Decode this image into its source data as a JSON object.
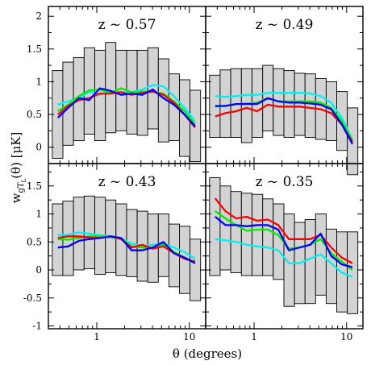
{
  "figure": {
    "xlabel": "θ (degrees)",
    "ylabel_main": "w",
    "ylabel_sub": "gT",
    "ylabel_subsub": "L",
    "ylabel_rest": "(θ) [μK]"
  },
  "chart_data": [
    {
      "type": "line",
      "title": "z ~ 0.57",
      "x_scale": "log",
      "xlim": [
        0.3,
        15
      ],
      "ylim": [
        -0.25,
        2.15
      ],
      "x_ticks": [
        1,
        10
      ],
      "x_tick_labels": [
        "1",
        "10"
      ],
      "y_ticks": [
        0,
        0.5,
        1,
        1.5,
        2
      ],
      "y_tick_labels": [
        "0",
        "0.5",
        "1",
        "1.5",
        "2"
      ],
      "boxes": [
        {
          "x0": 0.33,
          "x1": 0.43,
          "y0": -0.17,
          "y1": 1.17
        },
        {
          "x0": 0.43,
          "x1": 0.56,
          "y0": 0.03,
          "y1": 1.3
        },
        {
          "x0": 0.56,
          "x1": 0.73,
          "y0": 0.1,
          "y1": 1.37
        },
        {
          "x0": 0.73,
          "x1": 0.95,
          "y0": 0.2,
          "y1": 1.52
        },
        {
          "x0": 0.95,
          "x1": 1.24,
          "y0": 0.1,
          "y1": 1.48
        },
        {
          "x0": 1.24,
          "x1": 1.61,
          "y0": 0.22,
          "y1": 1.6
        },
        {
          "x0": 1.61,
          "x1": 2.1,
          "y0": 0.25,
          "y1": 1.48
        },
        {
          "x0": 2.1,
          "x1": 2.73,
          "y0": 0.2,
          "y1": 1.48
        },
        {
          "x0": 2.73,
          "x1": 3.55,
          "y0": 0.18,
          "y1": 1.48
        },
        {
          "x0": 3.55,
          "x1": 4.62,
          "y0": 0.28,
          "y1": 1.52
        },
        {
          "x0": 4.62,
          "x1": 6.01,
          "y0": 0.08,
          "y1": 1.35
        },
        {
          "x0": 6.01,
          "x1": 7.82,
          "y0": 0.1,
          "y1": 1.12
        },
        {
          "x0": 7.82,
          "x1": 10.17,
          "y0": -0.14,
          "y1": 1.03
        },
        {
          "x0": 10.17,
          "x1": 13.23,
          "y0": -0.22,
          "y1": 0.87
        }
      ],
      "x": [
        0.38,
        0.49,
        0.64,
        0.83,
        1.08,
        1.41,
        1.83,
        2.38,
        3.1,
        4.03,
        5.24,
        6.82,
        8.87,
        11.54
      ],
      "series": [
        {
          "color": "#00f0f0",
          "values": [
            0.65,
            0.7,
            0.75,
            0.85,
            0.8,
            0.85,
            0.84,
            0.84,
            0.88,
            0.95,
            0.93,
            0.78,
            0.6,
            0.4
          ]
        },
        {
          "color": "#00ee00",
          "values": [
            0.55,
            0.65,
            0.78,
            0.87,
            0.88,
            0.83,
            0.9,
            0.84,
            0.85,
            0.85,
            0.82,
            0.7,
            0.55,
            0.35
          ]
        },
        {
          "color": "#ff0000",
          "values": [
            0.5,
            0.63,
            0.72,
            0.75,
            0.82,
            0.82,
            0.84,
            0.8,
            0.83,
            0.85,
            0.8,
            0.68,
            0.5,
            0.3
          ]
        },
        {
          "color": "#0000ff",
          "values": [
            0.45,
            0.6,
            0.75,
            0.72,
            0.9,
            0.86,
            0.8,
            0.82,
            0.8,
            0.88,
            0.75,
            0.65,
            0.5,
            0.32
          ]
        }
      ]
    },
    {
      "type": "line",
      "title": "z ~ 0.49",
      "x_scale": "log",
      "xlim": [
        0.3,
        15
      ],
      "ylim": [
        -0.25,
        2.15
      ],
      "x_ticks": [
        1,
        10
      ],
      "x_tick_labels": [
        "1",
        "10"
      ],
      "y_ticks": [
        0,
        0.5,
        1,
        1.5,
        2
      ],
      "y_tick_labels": [
        "0",
        "0.5",
        "1",
        "1.5",
        "2"
      ],
      "boxes": [
        {
          "x0": 0.33,
          "x1": 0.43,
          "y0": 0.15,
          "y1": 1.1
        },
        {
          "x0": 0.43,
          "x1": 0.56,
          "y0": 0.15,
          "y1": 1.18
        },
        {
          "x0": 0.56,
          "x1": 0.73,
          "y0": 0.15,
          "y1": 1.2
        },
        {
          "x0": 0.73,
          "x1": 0.95,
          "y0": 0.07,
          "y1": 1.2
        },
        {
          "x0": 0.95,
          "x1": 1.24,
          "y0": 0.15,
          "y1": 1.2
        },
        {
          "x0": 1.24,
          "x1": 1.61,
          "y0": 0.25,
          "y1": 1.25
        },
        {
          "x0": 1.61,
          "x1": 2.1,
          "y0": 0.18,
          "y1": 1.2
        },
        {
          "x0": 2.1,
          "x1": 2.73,
          "y0": 0.15,
          "y1": 1.17
        },
        {
          "x0": 2.73,
          "x1": 3.55,
          "y0": 0.18,
          "y1": 1.13
        },
        {
          "x0": 3.55,
          "x1": 4.62,
          "y0": 0.15,
          "y1": 1.12
        },
        {
          "x0": 4.62,
          "x1": 6.01,
          "y0": 0.12,
          "y1": 1.05
        },
        {
          "x0": 6.01,
          "x1": 7.82,
          "y0": 0.1,
          "y1": 1.0
        },
        {
          "x0": 7.82,
          "x1": 10.17,
          "y0": -0.05,
          "y1": 0.85
        },
        {
          "x0": 10.17,
          "x1": 13.23,
          "y0": -0.42,
          "y1": 0.6
        }
      ],
      "x": [
        0.38,
        0.49,
        0.64,
        0.83,
        1.08,
        1.41,
        1.83,
        2.38,
        3.1,
        4.03,
        5.24,
        6.82,
        8.87,
        11.54
      ],
      "series": [
        {
          "color": "#00f0f0",
          "values": [
            0.78,
            0.77,
            0.78,
            0.8,
            0.8,
            0.83,
            0.83,
            0.83,
            0.83,
            0.82,
            0.78,
            0.68,
            0.45,
            0.12
          ]
        },
        {
          "color": "#00ee00",
          "values": [
            0.62,
            0.63,
            0.66,
            0.67,
            0.68,
            0.75,
            0.7,
            0.7,
            0.7,
            0.7,
            0.68,
            0.6,
            0.4,
            0.1
          ]
        },
        {
          "color": "#ff0000",
          "values": [
            0.47,
            0.52,
            0.55,
            0.6,
            0.55,
            0.65,
            0.62,
            0.62,
            0.62,
            0.6,
            0.58,
            0.52,
            0.35,
            0.08
          ]
        },
        {
          "color": "#0000ff",
          "values": [
            0.63,
            0.63,
            0.66,
            0.66,
            0.66,
            0.75,
            0.7,
            0.68,
            0.68,
            0.67,
            0.65,
            0.58,
            0.35,
            0.05
          ]
        }
      ]
    },
    {
      "type": "line",
      "title": "z ~ 0.43",
      "x_scale": "log",
      "xlim": [
        0.3,
        15
      ],
      "ylim": [
        -1.05,
        1.9
      ],
      "x_ticks": [
        1,
        10
      ],
      "x_tick_labels": [
        "1",
        "10"
      ],
      "y_ticks": [
        -1,
        -0.5,
        0,
        0.5,
        1,
        1.5
      ],
      "y_tick_labels": [
        "-1",
        "-0.5",
        "0",
        "0.5",
        "1",
        "1.5"
      ],
      "boxes": [
        {
          "x0": 0.33,
          "x1": 0.43,
          "y0": -0.1,
          "y1": 1.18
        },
        {
          "x0": 0.43,
          "x1": 0.56,
          "y0": -0.1,
          "y1": 1.23
        },
        {
          "x0": 0.56,
          "x1": 0.73,
          "y0": 0.0,
          "y1": 1.3
        },
        {
          "x0": 0.73,
          "x1": 0.95,
          "y0": 0.02,
          "y1": 1.32
        },
        {
          "x0": 0.95,
          "x1": 1.24,
          "y0": -0.08,
          "y1": 1.3
        },
        {
          "x0": 1.24,
          "x1": 1.61,
          "y0": -0.05,
          "y1": 1.25
        },
        {
          "x0": 1.61,
          "x1": 2.1,
          "y0": -0.1,
          "y1": 1.18
        },
        {
          "x0": 2.1,
          "x1": 2.73,
          "y0": -0.12,
          "y1": 1.08
        },
        {
          "x0": 2.73,
          "x1": 3.55,
          "y0": -0.2,
          "y1": 1.05
        },
        {
          "x0": 3.55,
          "x1": 4.62,
          "y0": -0.22,
          "y1": 1.0
        },
        {
          "x0": 4.62,
          "x1": 6.01,
          "y0": -0.12,
          "y1": 1.0
        },
        {
          "x0": 6.01,
          "x1": 7.82,
          "y0": -0.3,
          "y1": 0.82
        },
        {
          "x0": 7.82,
          "x1": 10.17,
          "y0": -0.42,
          "y1": 0.78
        },
        {
          "x0": 10.17,
          "x1": 13.23,
          "y0": -0.55,
          "y1": 0.55
        }
      ],
      "x": [
        0.38,
        0.49,
        0.64,
        0.83,
        1.08,
        1.41,
        1.83,
        2.38,
        3.1,
        4.03,
        5.24,
        6.82,
        8.87,
        11.54
      ],
      "series": [
        {
          "color": "#00f0f0",
          "values": [
            0.62,
            0.63,
            0.67,
            0.65,
            0.62,
            0.6,
            0.57,
            0.47,
            0.43,
            0.45,
            0.47,
            0.4,
            0.32,
            0.2
          ]
        },
        {
          "color": "#00ee00",
          "values": [
            0.55,
            0.54,
            0.57,
            0.6,
            0.6,
            0.58,
            0.56,
            0.42,
            0.4,
            0.4,
            0.45,
            0.32,
            0.22,
            0.13
          ]
        },
        {
          "color": "#ff0000",
          "values": [
            0.57,
            0.6,
            0.6,
            0.58,
            0.57,
            0.6,
            0.55,
            0.4,
            0.45,
            0.38,
            0.42,
            0.3,
            0.2,
            0.15
          ]
        },
        {
          "color": "#0000ff",
          "values": [
            0.4,
            0.42,
            0.52,
            0.55,
            0.57,
            0.6,
            0.57,
            0.35,
            0.35,
            0.4,
            0.5,
            0.3,
            0.22,
            0.12
          ]
        }
      ]
    },
    {
      "type": "line",
      "title": "z ~ 0.35",
      "x_scale": "log",
      "xlim": [
        0.3,
        15
      ],
      "ylim": [
        -1.05,
        1.9
      ],
      "x_ticks": [
        1,
        10
      ],
      "x_tick_labels": [
        "1",
        "10"
      ],
      "y_ticks": [
        -1,
        -0.5,
        0,
        0.5,
        1,
        1.5
      ],
      "y_tick_labels": [
        "-1",
        "-0.5",
        "0",
        "0.5",
        "1",
        "1.5"
      ],
      "boxes": [
        {
          "x0": 0.33,
          "x1": 0.43,
          "y0": -0.1,
          "y1": 1.65
        },
        {
          "x0": 0.43,
          "x1": 0.56,
          "y0": 0.0,
          "y1": 1.5
        },
        {
          "x0": 0.56,
          "x1": 0.73,
          "y0": -0.05,
          "y1": 1.4
        },
        {
          "x0": 0.73,
          "x1": 0.95,
          "y0": -0.1,
          "y1": 1.37
        },
        {
          "x0": 0.95,
          "x1": 1.24,
          "y0": -0.1,
          "y1": 1.35
        },
        {
          "x0": 1.24,
          "x1": 1.61,
          "y0": -0.1,
          "y1": 1.27
        },
        {
          "x0": 1.61,
          "x1": 2.1,
          "y0": -0.17,
          "y1": 1.18
        },
        {
          "x0": 2.1,
          "x1": 2.73,
          "y0": -0.65,
          "y1": 1.0
        },
        {
          "x0": 2.73,
          "x1": 3.55,
          "y0": -0.6,
          "y1": 0.85
        },
        {
          "x0": 3.55,
          "x1": 4.62,
          "y0": -0.6,
          "y1": 0.9
        },
        {
          "x0": 4.62,
          "x1": 6.01,
          "y0": -0.45,
          "y1": 1.0
        },
        {
          "x0": 6.01,
          "x1": 7.82,
          "y0": -0.6,
          "y1": 0.73
        },
        {
          "x0": 7.82,
          "x1": 10.17,
          "y0": -0.75,
          "y1": 0.68
        },
        {
          "x0": 10.17,
          "x1": 13.23,
          "y0": -0.78,
          "y1": 0.68
        }
      ],
      "x": [
        0.38,
        0.49,
        0.64,
        0.83,
        1.08,
        1.41,
        1.83,
        2.38,
        3.1,
        4.03,
        5.24,
        6.82,
        8.87,
        11.54
      ],
      "series": [
        {
          "color": "#ff0000",
          "values": [
            1.28,
            1.05,
            0.92,
            0.95,
            0.88,
            0.9,
            0.8,
            0.55,
            0.55,
            0.55,
            0.63,
            0.4,
            0.22,
            0.12
          ]
        },
        {
          "color": "#00ee00",
          "values": [
            1.05,
            0.92,
            0.8,
            0.7,
            0.72,
            0.72,
            0.62,
            0.38,
            0.4,
            0.45,
            0.55,
            0.3,
            0.15,
            0.0
          ]
        },
        {
          "color": "#0000ff",
          "values": [
            0.95,
            0.8,
            0.8,
            0.78,
            0.8,
            0.8,
            0.72,
            0.35,
            0.4,
            0.45,
            0.65,
            0.25,
            0.1,
            0.05
          ]
        },
        {
          "color": "#00f0f0",
          "values": [
            0.55,
            0.53,
            0.5,
            0.45,
            0.42,
            0.4,
            0.35,
            0.12,
            0.12,
            0.2,
            0.28,
            0.12,
            -0.05,
            -0.12
          ]
        }
      ]
    }
  ]
}
